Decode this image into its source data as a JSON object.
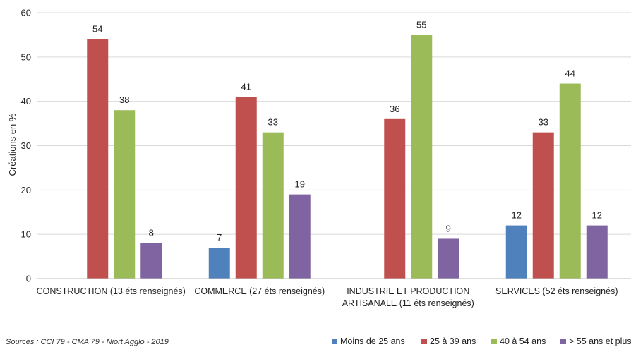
{
  "chart_data": {
    "type": "bar",
    "categories": [
      [
        "CONSTRUCTION (13 éts renseignés)"
      ],
      [
        "COMMERCE (27 éts renseignés)"
      ],
      [
        "INDUSTRIE ET PRODUCTION",
        "ARTISANALE (11 éts renseignés)"
      ],
      [
        "SERVICES (52 éts renseignés)"
      ]
    ],
    "series": [
      {
        "name": "Moins de 25 ans",
        "color": "#4f81bd",
        "values": [
          null,
          7,
          null,
          12
        ]
      },
      {
        "name": "25 à 39 ans",
        "color": "#c0504d",
        "values": [
          54,
          41,
          36,
          33
        ]
      },
      {
        "name": "40 à 54 ans",
        "color": "#9bbb59",
        "values": [
          38,
          33,
          55,
          44
        ]
      },
      {
        "name": "> 55 ans et plus",
        "color": "#8064a2",
        "values": [
          8,
          19,
          9,
          12
        ]
      }
    ],
    "ylabel": "Créations en %",
    "ylim": [
      0,
      60
    ],
    "yticks": [
      0,
      10,
      20,
      30,
      40,
      50,
      60
    ],
    "grid": true,
    "legend_position": "bottom-right"
  },
  "source": "Sources : CCI 79 - CMA 79 - Niort Agglo - 2019",
  "colors": {
    "grid": "#d9d9d9",
    "axis": "#bfbfbf"
  }
}
